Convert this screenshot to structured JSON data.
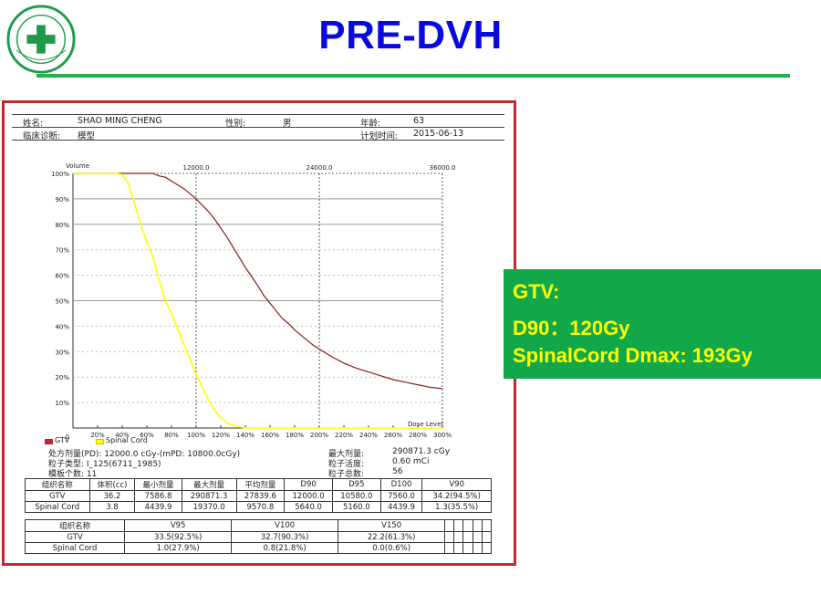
{
  "page": {
    "title": "PRE-DVH"
  },
  "patient": {
    "name_label": "姓名:",
    "name_value": "SHAO MING CHENG",
    "sex_label": "性别:",
    "sex_value": "男",
    "age_label": "年龄:",
    "age_value": "63",
    "diag_label": "临床诊断:",
    "diag_value": "模型",
    "plan_label": "计划时间:",
    "plan_value": "2015-06-13"
  },
  "chart_data": {
    "type": "line",
    "title": "",
    "ylabel": "Volume",
    "xlabel": "Dose Level",
    "x_tick_labels": [
      "0",
      "20%",
      "40%",
      "60%",
      "80%",
      "100%",
      "120%",
      "140%",
      "160%",
      "180%",
      "200%",
      "220%",
      "240%",
      "260%",
      "280%",
      "300%"
    ],
    "y_tick_labels": [
      "100%",
      "90%",
      "80%",
      "70%",
      "60%",
      "50%",
      "40%",
      "30%",
      "20%",
      "10%"
    ],
    "top_axis_labels": [
      "12000.0",
      "24000.0",
      "36000.0"
    ],
    "xlim": [
      0,
      300
    ],
    "ylim": [
      0,
      100
    ],
    "series": [
      {
        "name": "GTV",
        "color": "#8b1a1a",
        "x": [
          0,
          10,
          20,
          30,
          40,
          50,
          60,
          65,
          70,
          75,
          80,
          85,
          90,
          95,
          100,
          105,
          110,
          115,
          120,
          125,
          130,
          135,
          140,
          145,
          150,
          155,
          160,
          165,
          170,
          175,
          180,
          185,
          190,
          195,
          200,
          210,
          220,
          230,
          240,
          250,
          260,
          270,
          280,
          290,
          300
        ],
        "y": [
          100,
          100,
          100,
          100,
          100,
          100,
          100,
          100,
          99,
          98.5,
          97,
          95.5,
          94,
          92,
          90,
          87.5,
          85,
          82,
          78.5,
          75,
          71,
          67,
          63,
          59.5,
          56,
          52,
          49,
          46,
          43,
          41,
          38.5,
          36.5,
          34.5,
          32.5,
          31,
          28,
          25.5,
          23.5,
          22,
          20.5,
          19,
          18,
          17,
          16,
          15.5
        ]
      },
      {
        "name": "Spinal Cord",
        "color": "#ffff00",
        "x": [
          0,
          10,
          20,
          30,
          35,
          40,
          45,
          50,
          55,
          60,
          65,
          70,
          75,
          80,
          85,
          90,
          95,
          100,
          105,
          110,
          115,
          120,
          125,
          130,
          135,
          140,
          150,
          160,
          180,
          200,
          220,
          240,
          260,
          280,
          300
        ],
        "y": [
          100,
          100,
          100,
          100,
          100,
          99.5,
          96,
          88,
          80,
          73,
          67,
          58,
          50,
          45,
          39,
          33,
          27,
          21,
          16,
          11,
          7,
          4,
          2,
          1,
          0.5,
          0,
          0,
          0,
          0,
          0,
          0,
          0,
          0,
          0,
          0
        ]
      }
    ],
    "grid": true,
    "legend": "bottom-left"
  },
  "plan_info": {
    "pd": "处方剂量(PD):  12000.0 cGy-(mPD: 10800.0cGy)",
    "seed_type": "粒子类型:    I_125(6711_1985)",
    "plane_count": "模板个数:    11",
    "max_dose_label": "最大剂量:",
    "max_dose_value": "290871.3 cGy",
    "activity_label": "粒子活度:",
    "activity_value": "0.60 mCi",
    "seed_total_label": "粒子总数:",
    "seed_total_value": "56"
  },
  "table1": {
    "headers": [
      "组织名称",
      "体积(cc)",
      "最小剂量",
      "最大剂量",
      "平均剂量",
      "D90",
      "D95",
      "D100",
      "V90"
    ],
    "rows": [
      [
        "GTV",
        "36.2",
        "7586.8",
        "290871.3",
        "27839.6",
        "12000.0",
        "10580.0",
        "7560.0",
        "34.2(94.5%)"
      ],
      [
        "Spinal Cord",
        "3.8",
        "4439.9",
        "19370.0",
        "9570.8",
        "5640.0",
        "5160.0",
        "4439.9",
        "1.3(35.5%)"
      ]
    ]
  },
  "table2": {
    "headers": [
      "组织名称",
      "V95",
      "V100",
      "V150",
      "",
      "",
      "",
      "",
      ""
    ],
    "rows": [
      [
        "GTV",
        "33.5(92.5%)",
        "32.7(90.3%)",
        "22.2(61.3%)",
        "",
        "",
        "",
        "",
        ""
      ],
      [
        "Spinal Cord",
        "1.0(27.9%)",
        "0.8(21.8%)",
        "0.0(0.6%)",
        "",
        "",
        "",
        "",
        ""
      ]
    ]
  },
  "summary": {
    "line1": "GTV:",
    "line2": "D90：120Gy",
    "line3": "SpinalCord Dmax: 193Gy"
  },
  "colors": {
    "title": "#0a0ae0",
    "rule": "#22b14c",
    "frame": "#c1272d",
    "callout_bg": "#12a84a",
    "callout_text": "#ffff00"
  }
}
